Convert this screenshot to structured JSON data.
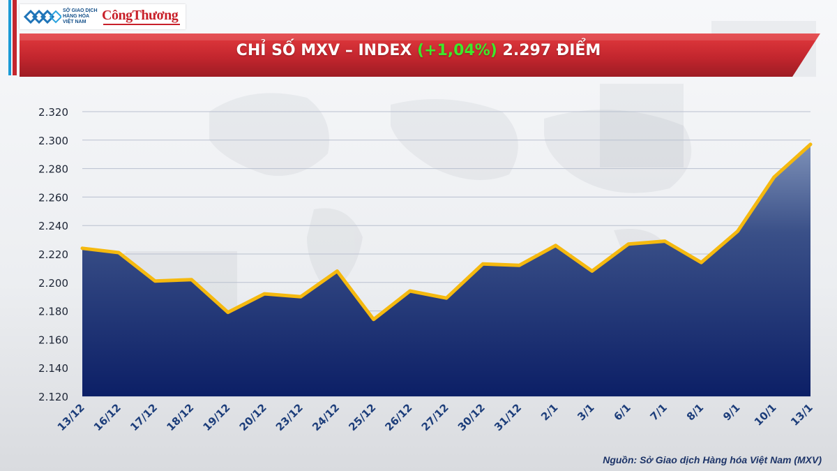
{
  "header": {
    "mxv_logo_lines": [
      "SỞ GIAO DỊCH",
      "HÀNG HÓA",
      "VIỆT NAM"
    ],
    "congthuong_logo": "CôngThương",
    "title_prefix": "CHỈ SỐ MXV – INDEX ",
    "title_change": "(+1,04%)",
    "title_suffix": " 2.297 ĐIỂM"
  },
  "colors": {
    "banner_red": "#c3262e",
    "change_green": "#3ee82c",
    "line_gold": "#f5b90f",
    "area_top": "#7e91b8",
    "area_bottom": "#0c1f66"
  },
  "chart_data": {
    "type": "area",
    "categories": [
      "13/12",
      "16/12",
      "17/12",
      "18/12",
      "19/12",
      "20/12",
      "23/12",
      "24/12",
      "25/12",
      "26/12",
      "27/12",
      "30/12",
      "31/12",
      "2/1",
      "3/1",
      "6/1",
      "7/1",
      "8/1",
      "9/1",
      "10/1",
      "13/1"
    ],
    "values": [
      2224,
      2221,
      2201,
      2202,
      2179,
      2192,
      2190,
      2208,
      2174,
      2194,
      2189,
      2213,
      2212,
      2226,
      2208,
      2227,
      2229,
      2214,
      2236,
      2274,
      2297
    ],
    "y_ticks": [
      "2.120",
      "2.140",
      "2.160",
      "2.180",
      "2.200",
      "2.220",
      "2.240",
      "2.260",
      "2.280",
      "2.300",
      "2.320"
    ],
    "ylim": [
      2120,
      2320
    ],
    "grid": true,
    "legend": "none"
  },
  "source": "Nguồn: Sở Giao dịch Hàng hóa Việt Nam (MXV)"
}
